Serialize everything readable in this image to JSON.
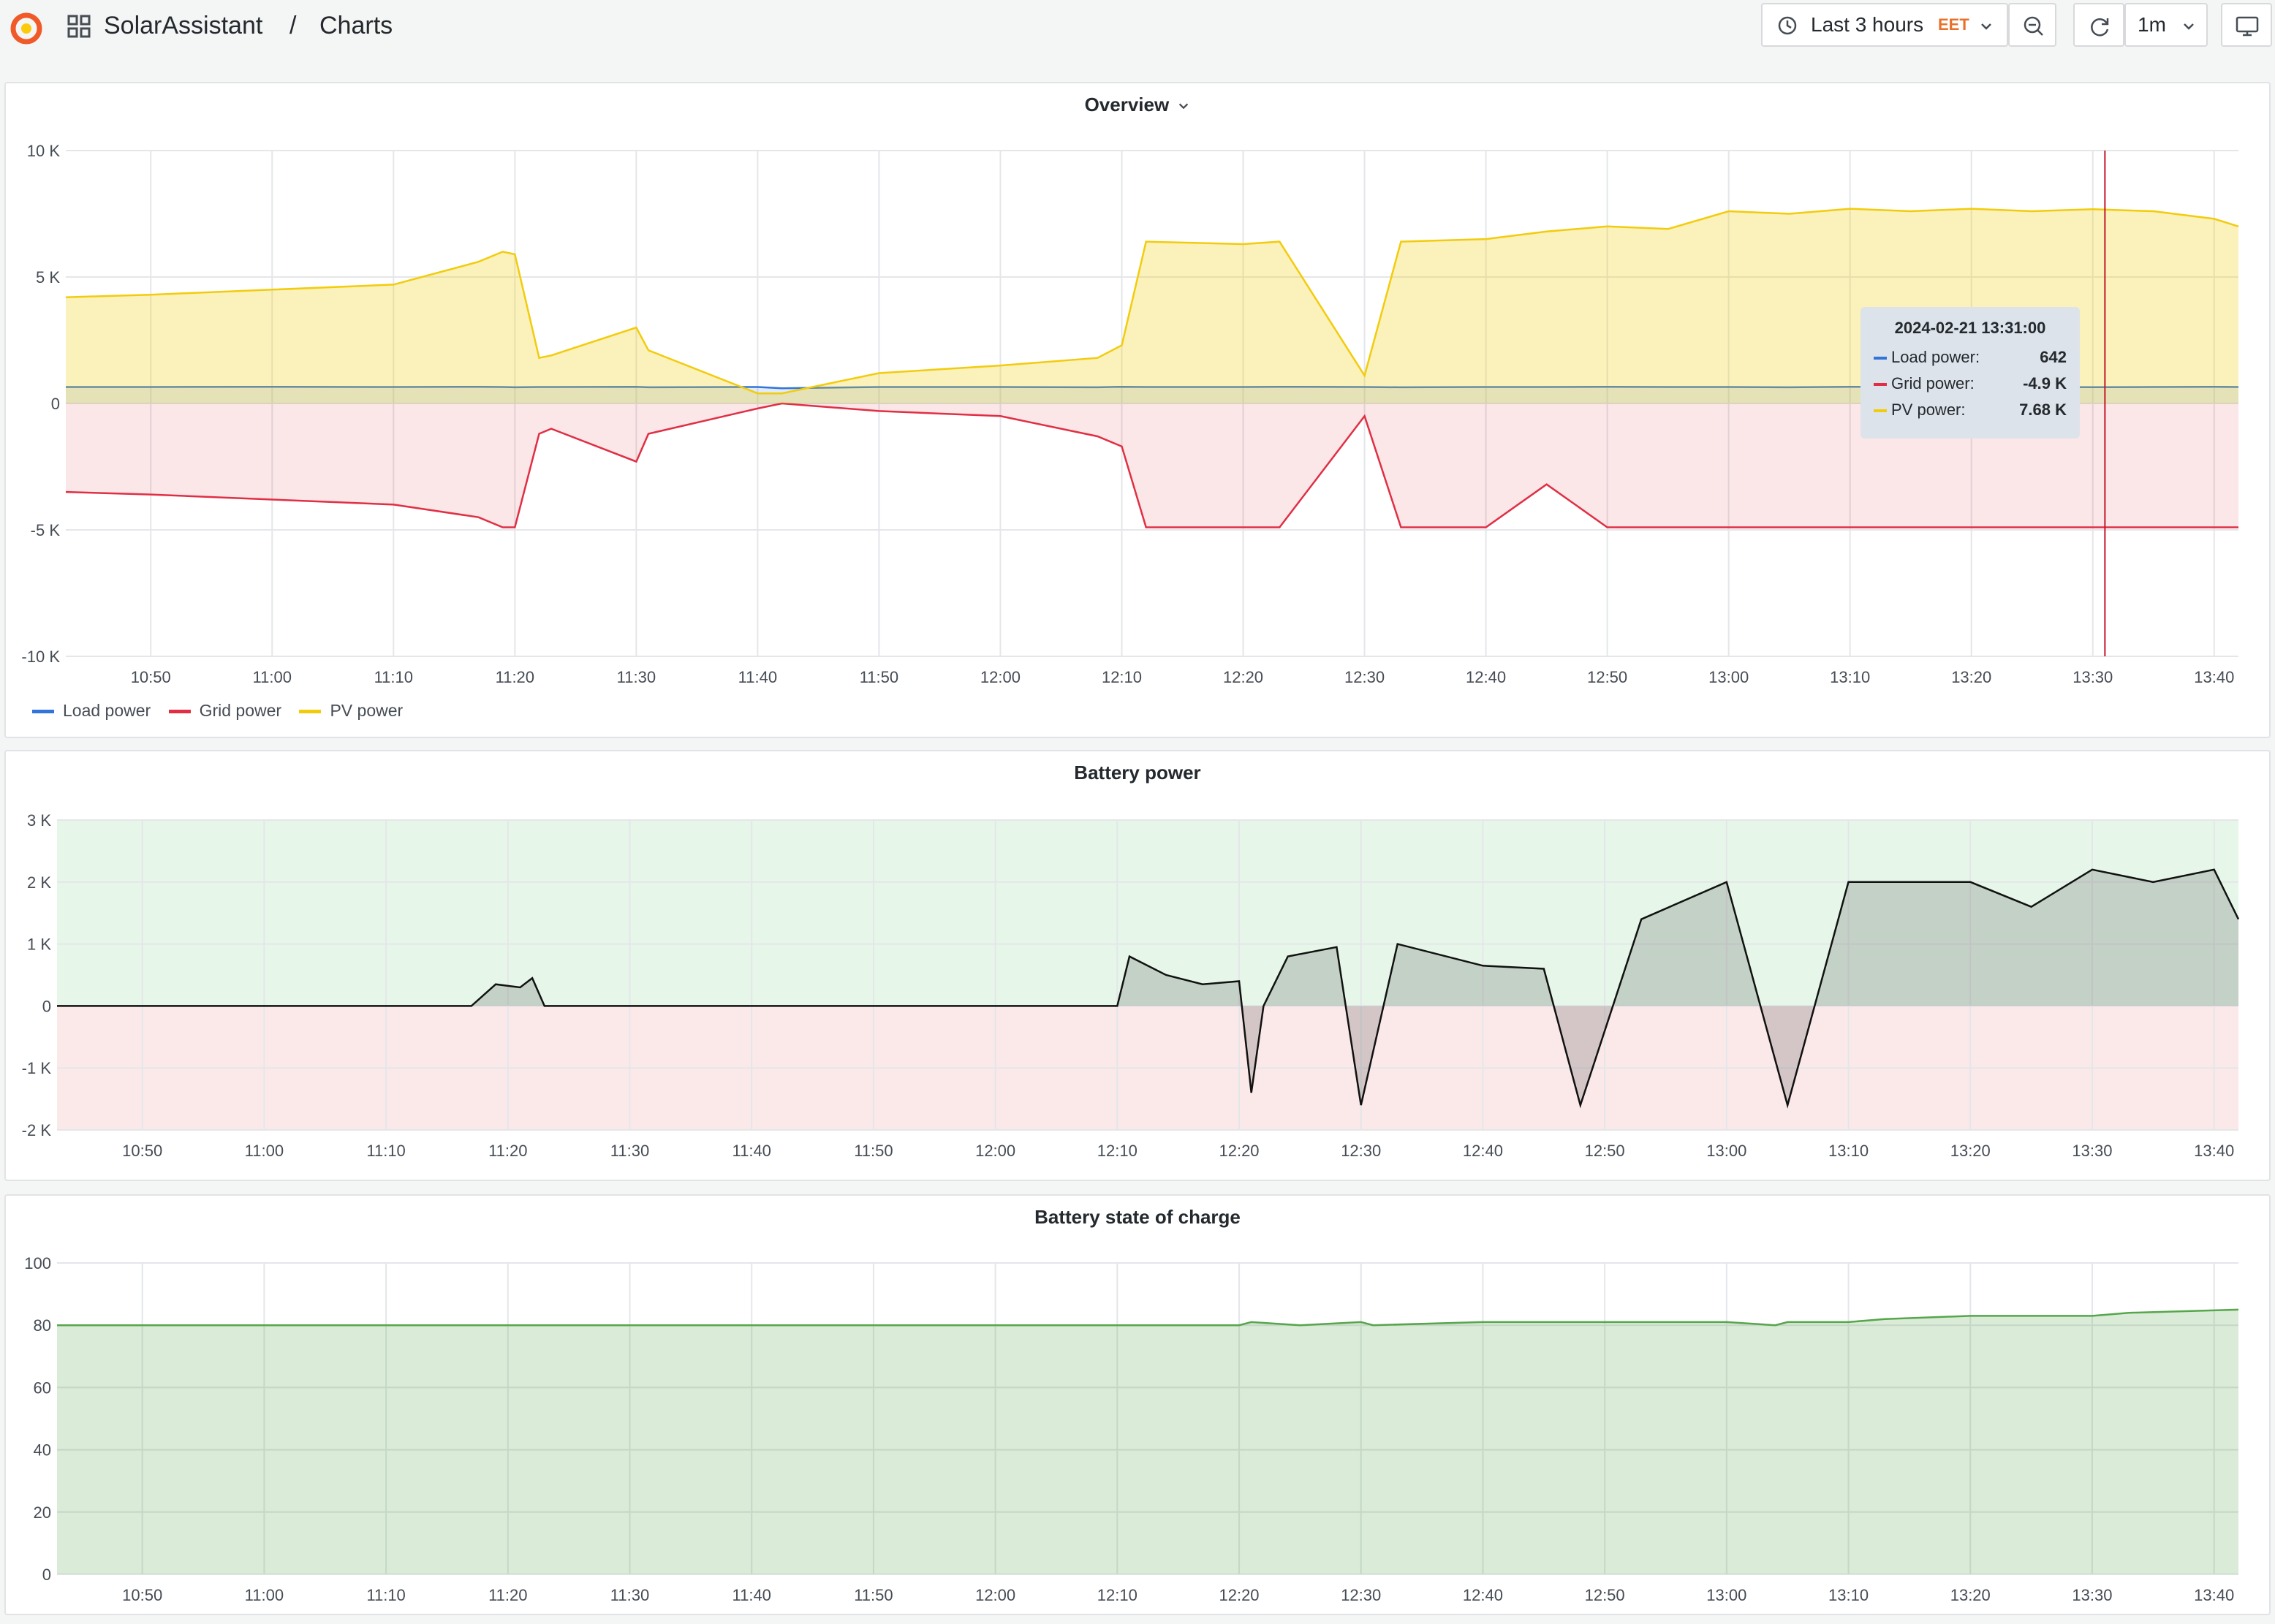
{
  "header": {
    "breadcrumb_app": "SolarAssistant",
    "breadcrumb_sep": "/",
    "breadcrumb_page": "Charts",
    "time_range_label": "Last 3 hours",
    "timezone": "EET",
    "refresh_interval": "1m",
    "icons": [
      "grafana-logo-icon",
      "dashboard-grid-icon",
      "clock-icon",
      "chevron-down-icon",
      "zoom-out-icon",
      "refresh-icon",
      "tv-mode-icon"
    ]
  },
  "x_ticks": [
    "10:50",
    "11:00",
    "11:10",
    "11:20",
    "11:30",
    "11:40",
    "11:50",
    "12:00",
    "12:10",
    "12:20",
    "12:30",
    "12:40",
    "12:50",
    "13:00",
    "13:10",
    "13:20",
    "13:30",
    "13:40"
  ],
  "overview": {
    "title": "Overview",
    "legend": [
      {
        "name": "Load power",
        "color": "#3274d9"
      },
      {
        "name": "Grid power",
        "color": "#e02f44"
      },
      {
        "name": "PV power",
        "color": "#f2cc0c"
      }
    ],
    "tooltip": {
      "time": "2024-02-21 13:31:00",
      "rows": [
        {
          "label": "Load power:",
          "value": "642",
          "color": "#3274d9"
        },
        {
          "label": "Grid power:",
          "value": "-4.9 K",
          "color": "#e02f44"
        },
        {
          "label": "PV power:",
          "value": "7.68 K",
          "color": "#f2cc0c"
        }
      ]
    }
  },
  "battery_power": {
    "title": "Battery power"
  },
  "battery_soc": {
    "title": "Battery state of charge"
  },
  "chart_data": [
    {
      "type": "line",
      "title": "Overview",
      "x": [
        "10:43",
        "10:50",
        "11:00",
        "11:10",
        "11:17",
        "11:19",
        "11:20",
        "11:22",
        "11:23",
        "11:30",
        "11:31",
        "11:40",
        "11:42",
        "11:50",
        "12:00",
        "12:08",
        "12:10",
        "12:12",
        "12:20",
        "12:23",
        "12:30",
        "12:33",
        "12:40",
        "12:45",
        "12:50",
        "12:55",
        "13:00",
        "13:05",
        "13:10",
        "13:15",
        "13:20",
        "13:25",
        "13:30",
        "13:35",
        "13:40",
        "13:42"
      ],
      "series": [
        {
          "name": "Load power",
          "values": [
            650,
            650,
            660,
            650,
            660,
            650,
            640,
            650,
            650,
            660,
            640,
            650,
            600,
            650,
            650,
            640,
            660,
            650,
            650,
            660,
            650,
            640,
            650,
            650,
            660,
            650,
            650,
            640,
            660,
            650,
            640,
            650,
            642,
            650,
            660,
            650
          ]
        },
        {
          "name": "Grid power",
          "values": [
            -3500,
            -3600,
            -3800,
            -4000,
            -4500,
            -4900,
            -4900,
            -1200,
            -1000,
            -2300,
            -1200,
            -200,
            0,
            -300,
            -500,
            -1300,
            -1700,
            -4900,
            -4900,
            -4900,
            -500,
            -4900,
            -4900,
            -3200,
            -4900,
            -4900,
            -4900,
            -4900,
            -4900,
            -4900,
            -4900,
            -4900,
            -4900,
            -4900,
            -4900,
            -4900
          ]
        },
        {
          "name": "PV power",
          "values": [
            4200,
            4300,
            4500,
            4700,
            5600,
            6000,
            5900,
            1800,
            1900,
            3000,
            2100,
            400,
            400,
            1200,
            1500,
            1800,
            2300,
            6400,
            6300,
            6400,
            1100,
            6400,
            6500,
            6800,
            7000,
            6900,
            7600,
            7500,
            7700,
            7600,
            7700,
            7600,
            7680,
            7600,
            7300,
            7000
          ]
        }
      ],
      "ylim": [
        -10000,
        10000
      ],
      "yticks": [
        "10 K",
        "5 K",
        "0",
        "-5 K",
        "-10 K"
      ],
      "legend": "bottom-left",
      "grid": true
    },
    {
      "type": "area",
      "title": "Battery power",
      "x": [
        "10:43",
        "11:00",
        "11:17",
        "11:19",
        "11:21",
        "11:22",
        "11:23",
        "11:50",
        "12:10",
        "12:11",
        "12:14",
        "12:17",
        "12:20",
        "12:21",
        "12:22",
        "12:24",
        "12:28",
        "12:30",
        "12:33",
        "12:40",
        "12:45",
        "12:48",
        "12:53",
        "13:00",
        "13:05",
        "13:10",
        "13:15",
        "13:20",
        "13:25",
        "13:30",
        "13:35",
        "13:40",
        "13:42"
      ],
      "values": [
        0,
        0,
        0,
        350,
        300,
        450,
        0,
        0,
        0,
        800,
        500,
        350,
        400,
        -1400,
        0,
        800,
        950,
        -1600,
        1000,
        650,
        600,
        -1600,
        1400,
        2000,
        -1600,
        2000,
        2000,
        2000,
        1600,
        2200,
        2000,
        2200,
        1400
      ],
      "ylim": [
        -2000,
        3000
      ],
      "yticks": [
        "3 K",
        "2 K",
        "1 K",
        "0",
        "-1 K",
        "-2 K"
      ],
      "grid": true
    },
    {
      "type": "area",
      "title": "Battery state of charge",
      "x": [
        "10:43",
        "11:00",
        "11:30",
        "12:00",
        "12:20",
        "12:21",
        "12:25",
        "12:30",
        "12:31",
        "12:40",
        "13:00",
        "13:04",
        "13:05",
        "13:10",
        "13:13",
        "13:20",
        "13:30",
        "13:33",
        "13:42"
      ],
      "values": [
        80,
        80,
        80,
        80,
        80,
        81,
        80,
        81,
        80,
        81,
        81,
        80,
        81,
        81,
        82,
        83,
        83,
        84,
        85
      ],
      "ylim": [
        0,
        100
      ],
      "yticks": [
        "100",
        "80",
        "60",
        "40",
        "20",
        "0"
      ],
      "grid": true
    }
  ]
}
